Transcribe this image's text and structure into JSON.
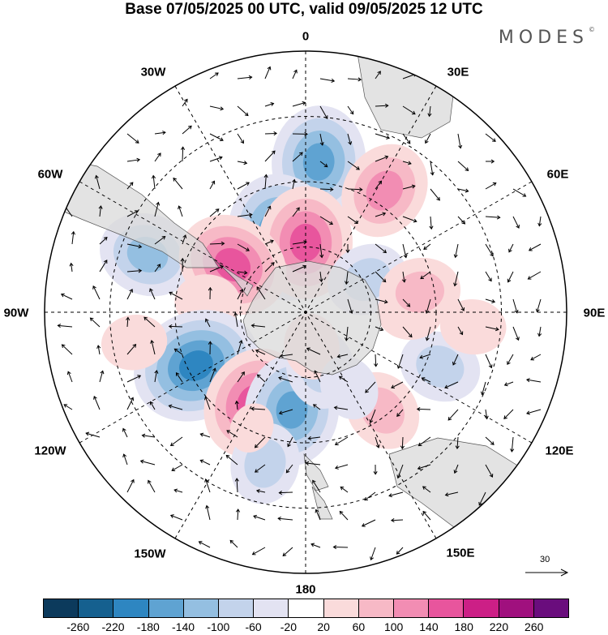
{
  "title": "Base 07/05/2025 00 UTC, valid 09/05/2025 12 UTC",
  "brand": "MODES",
  "brand_mark": "©",
  "longitude_labels": {
    "l0": "0",
    "l30e": "30E",
    "l60e": "60E",
    "l90e": "90E",
    "l120e": "120E",
    "l150e": "150E",
    "l180": "180",
    "l150w": "150W",
    "l120w": "120W",
    "l90w": "90W",
    "l60w": "60W",
    "l30w": "30W"
  },
  "reference_vector": {
    "label": "30",
    "icon": "arrow-right-icon"
  },
  "colorbar": {
    "colors": [
      "#0c3a5c",
      "#15608f",
      "#2e86c1",
      "#5fa3d2",
      "#94bfe1",
      "#c3d3eb",
      "#e3e3f2",
      "#ffffff",
      "#fadbdb",
      "#f7b9c6",
      "#f28db3",
      "#e8559d",
      "#cc1f86",
      "#a0107e",
      "#6a0d7d"
    ],
    "ticks": [
      "-260",
      "-220",
      "-180",
      "-140",
      "-100",
      "-60",
      "-20",
      "20",
      "60",
      "100",
      "140",
      "180",
      "220",
      "260"
    ]
  },
  "anomaly_centers": [
    {
      "lon": 5,
      "colat": 52,
      "value": -180
    },
    {
      "lon": 33,
      "colat": 50,
      "value": 140
    },
    {
      "lon": 343,
      "colat": 27,
      "value": -220
    },
    {
      "lon": 0,
      "colat": 24,
      "value": 180
    },
    {
      "lon": 290,
      "colat": 58,
      "value": -140
    },
    {
      "lon": 303,
      "colat": 30,
      "value": 180
    },
    {
      "lon": 276,
      "colat": 34,
      "value": 60
    },
    {
      "lon": 244,
      "colat": 42,
      "value": -220
    },
    {
      "lon": 210,
      "colat": 36,
      "value": 180
    },
    {
      "lon": 188,
      "colat": 34,
      "value": -180
    },
    {
      "lon": 195,
      "colat": 54,
      "value": -100
    },
    {
      "lon": 165,
      "colat": 20,
      "value": -100
    },
    {
      "lon": 170,
      "colat": 12,
      "value": 60
    },
    {
      "lon": 142,
      "colat": 43,
      "value": 100
    },
    {
      "lon": 112,
      "colat": 50,
      "value": -100
    },
    {
      "lon": 62,
      "colat": 24,
      "value": -100
    },
    {
      "lon": 90,
      "colat": 36,
      "value": 60
    },
    {
      "lon": 95,
      "colat": 58,
      "value": 60
    },
    {
      "lon": 205,
      "colat": 44,
      "value": 20
    },
    {
      "lon": 150,
      "colat": 30,
      "value": -60
    },
    {
      "lon": 260,
      "colat": 60,
      "value": 60
    },
    {
      "lon": 80,
      "colat": 40,
      "value": 100
    }
  ]
}
